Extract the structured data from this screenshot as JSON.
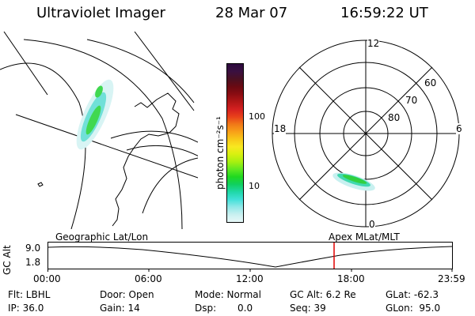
{
  "header": {
    "instrument": "Ultraviolet Imager",
    "date": "28 Mar 07",
    "time": "16:59:22 UT"
  },
  "colorbar": {
    "unit_label": "photon cm⁻²s⁻¹",
    "tick_labels": [
      "100",
      "10"
    ],
    "colors": [
      "#2b0a3d",
      "#3a1040",
      "#4a1022",
      "#6a0a12",
      "#8a0c12",
      "#b01616",
      "#d42020",
      "#e8401a",
      "#f07818",
      "#f8a018",
      "#f8c818",
      "#f8e820",
      "#d8f010",
      "#a8f010",
      "#60e820",
      "#20d820",
      "#10d060",
      "#20d8a8",
      "#40e0d8",
      "#90e8e8",
      "#c8f0f0",
      "#e8f8f8"
    ]
  },
  "maps": {
    "left_label": "Geographic Lat/Lon",
    "right_label": "Apex MLat/MLT",
    "polar_mlt_labels": [
      "12",
      "18",
      "6",
      "0"
    ],
    "polar_lat_labels": [
      "60",
      "70",
      "80"
    ]
  },
  "altitude_plot": {
    "y_label": "GC Alt",
    "y_ticks": [
      "9.0",
      "1.8"
    ],
    "x_ticks": [
      "00:00",
      "06:00",
      "12:00",
      "18:00",
      "23:59"
    ],
    "marker_color": "#e00000"
  },
  "info": {
    "filter": "Flt: LBHL",
    "door": "Door: Open",
    "mode": "Mode: Normal",
    "gc_alt": "GC Alt: 6.2 Re",
    "glat": "GLat: -62.3",
    "ip": "IP: 36.0",
    "gain": "Gain: 14",
    "dsp_label": "Dsp:",
    "dsp_value": "0.0",
    "seq": "Seq: 39",
    "glon": "GLon:  95.0"
  }
}
